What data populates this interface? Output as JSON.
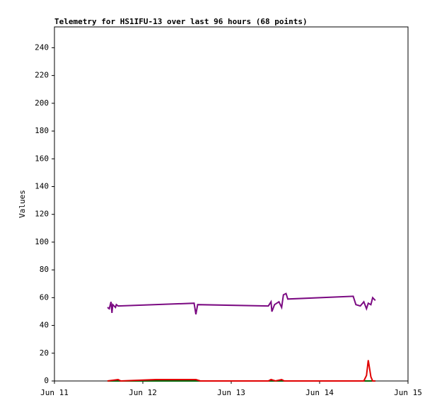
{
  "chart_data": {
    "type": "line",
    "title": "Telemetry for HS1IFU-13 over last 96 hours (68 points)",
    "y_label": "Values",
    "xlim": [
      0,
      4
    ],
    "xticks": [
      {
        "value": 0,
        "label": "Jun 11"
      },
      {
        "value": 1,
        "label": "Jun 12"
      },
      {
        "value": 2,
        "label": "Jun 13"
      },
      {
        "value": 3,
        "label": "Jun 14"
      },
      {
        "value": 4,
        "label": "Jun 15"
      }
    ],
    "ylim": [
      0,
      255
    ],
    "yticks": [
      0,
      20,
      40,
      60,
      80,
      100,
      120,
      140,
      160,
      180,
      200,
      220,
      240
    ],
    "series": [
      {
        "color": "#7b0a82",
        "x": [
          0.6,
          0.62,
          0.64,
          0.65,
          0.66,
          0.69,
          0.7,
          0.72,
          1.58,
          1.6,
          1.62,
          2.42,
          2.45,
          2.46,
          2.49,
          2.54,
          2.57,
          2.59,
          2.62,
          2.64,
          3.38,
          3.41,
          3.46,
          3.5,
          3.53,
          3.55,
          3.58,
          3.6,
          3.63
        ],
        "values": [
          53,
          52,
          57,
          49,
          55,
          53,
          55,
          54,
          56,
          48,
          55,
          54,
          57,
          50,
          55,
          57,
          53,
          62,
          63,
          59,
          61,
          55,
          54,
          57,
          52,
          56,
          55,
          60,
          58
        ]
      },
      {
        "color": "#006400",
        "x": [
          0.6,
          3.63
        ],
        "values": [
          0,
          0
        ]
      },
      {
        "color": "#e00000",
        "x": [
          0.6,
          0.72,
          0.75,
          1.15,
          1.6,
          1.65,
          2.42,
          2.45,
          2.5,
          2.57,
          2.6,
          3.5,
          3.53,
          3.55,
          3.58,
          3.6,
          3.63
        ],
        "values": [
          0,
          1,
          0,
          1,
          1,
          0,
          0,
          1,
          0,
          1,
          0,
          0,
          4,
          15,
          3,
          0,
          0
        ]
      }
    ]
  }
}
